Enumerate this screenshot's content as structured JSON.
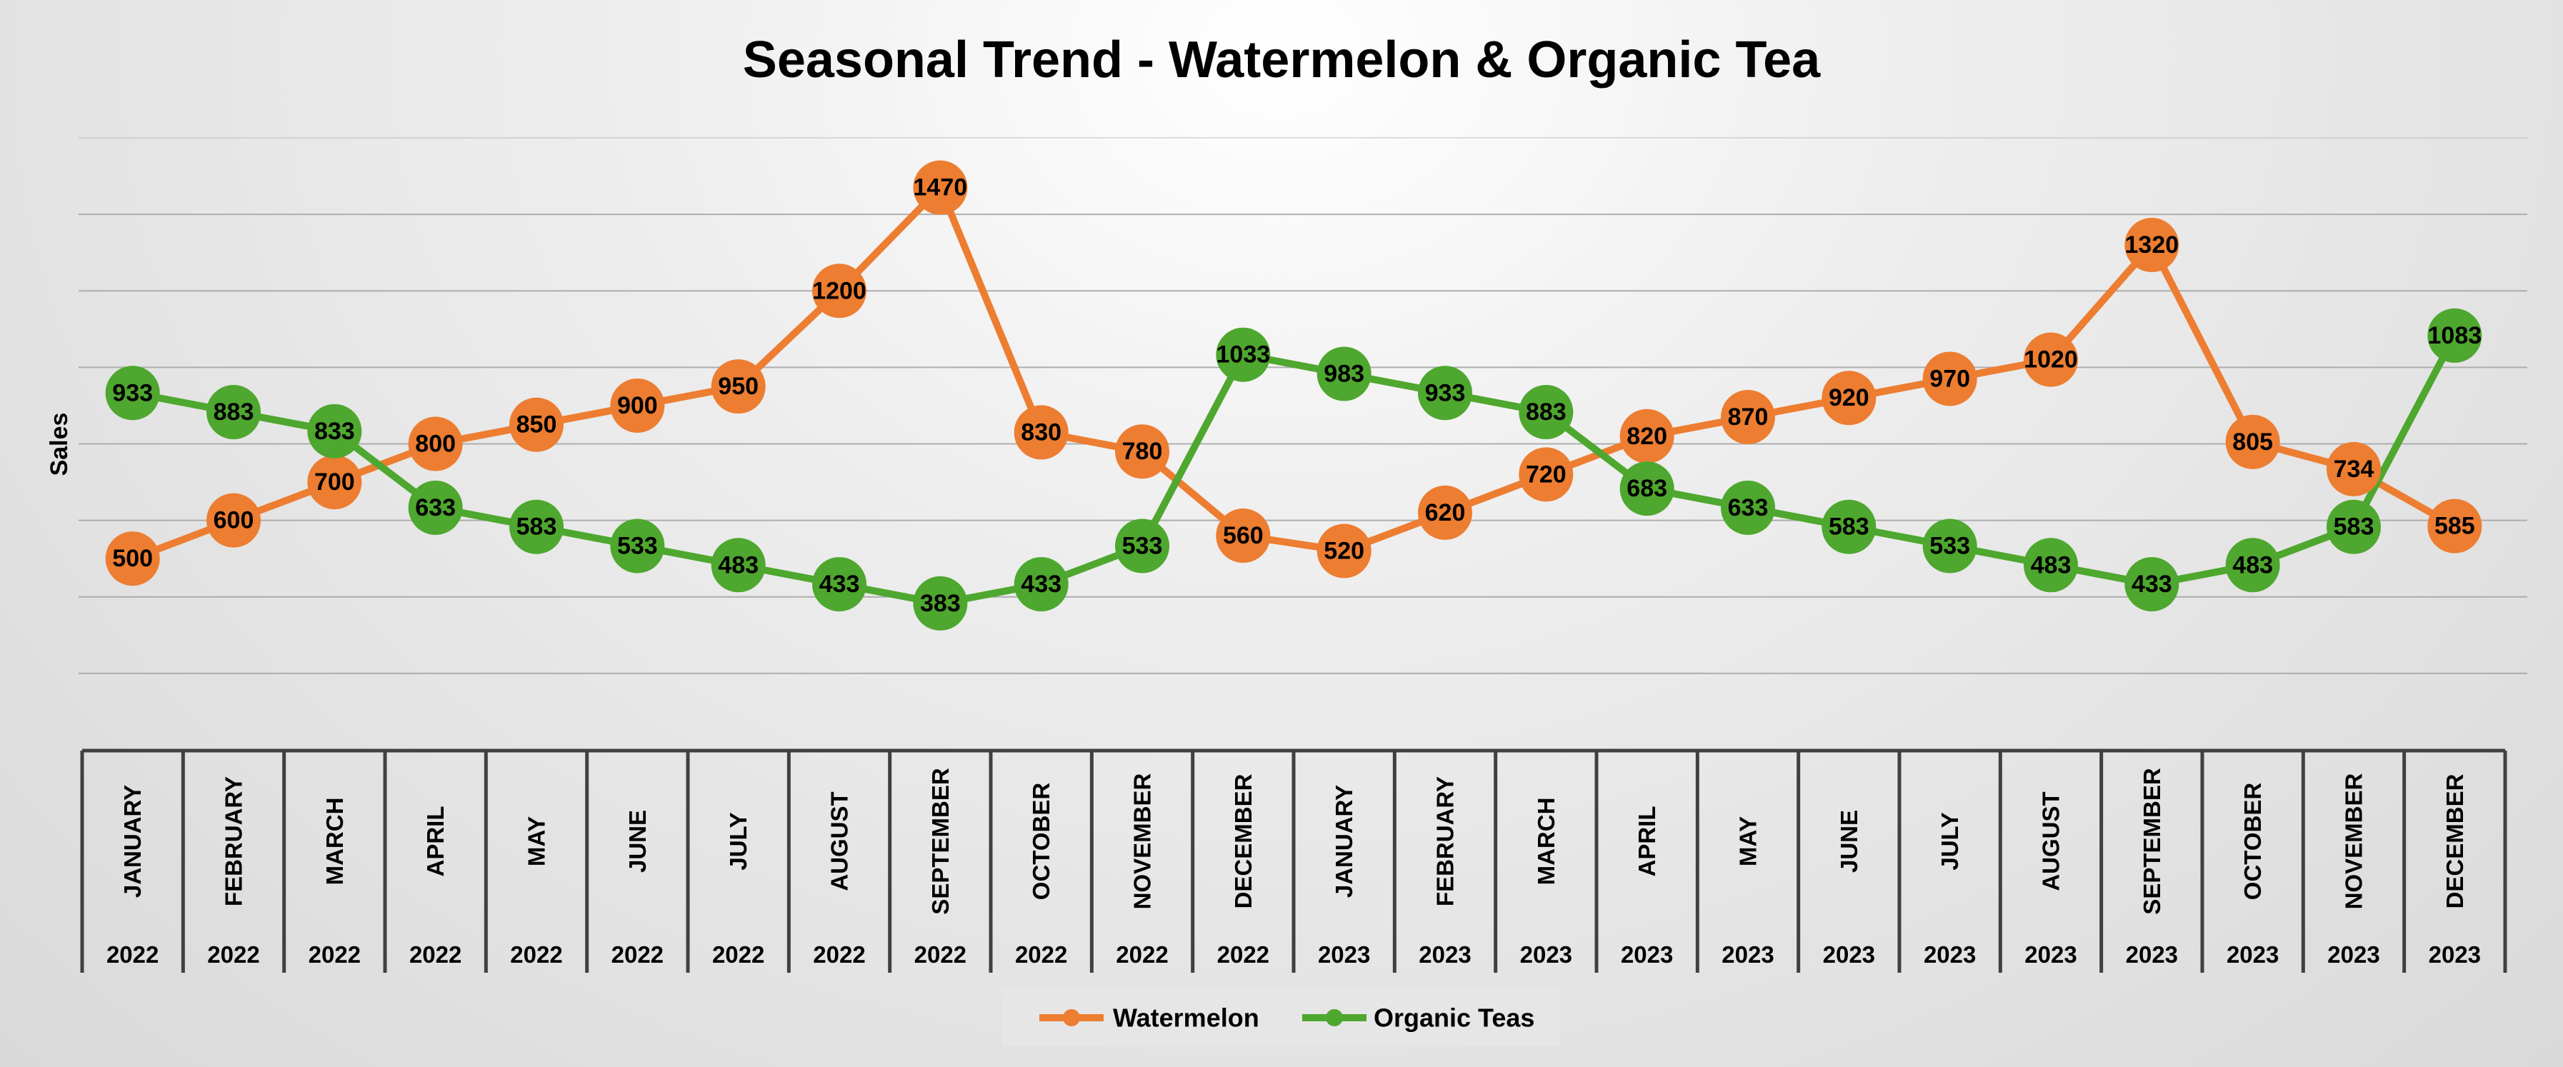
{
  "chart_data": {
    "type": "line",
    "title": "Seasonal Trend - Watermelon & Organic Tea",
    "ylabel": "Sales",
    "xlabel": "",
    "ylim": [
      0,
      1600
    ],
    "grid": true,
    "legend_position": "bottom",
    "categories": [
      {
        "month": "JANUARY",
        "year": "2022"
      },
      {
        "month": "FEBRUARY",
        "year": "2022"
      },
      {
        "month": "MARCH",
        "year": "2022"
      },
      {
        "month": "APRIL",
        "year": "2022"
      },
      {
        "month": "MAY",
        "year": "2022"
      },
      {
        "month": "JUNE",
        "year": "2022"
      },
      {
        "month": "JULY",
        "year": "2022"
      },
      {
        "month": "AUGUST",
        "year": "2022"
      },
      {
        "month": "SEPTEMBER",
        "year": "2022"
      },
      {
        "month": "OCTOBER",
        "year": "2022"
      },
      {
        "month": "NOVEMBER",
        "year": "2022"
      },
      {
        "month": "DECEMBER",
        "year": "2022"
      },
      {
        "month": "JANUARY",
        "year": "2023"
      },
      {
        "month": "FEBRUARY",
        "year": "2023"
      },
      {
        "month": "MARCH",
        "year": "2023"
      },
      {
        "month": "APRIL",
        "year": "2023"
      },
      {
        "month": "MAY",
        "year": "2023"
      },
      {
        "month": "JUNE",
        "year": "2023"
      },
      {
        "month": "JULY",
        "year": "2023"
      },
      {
        "month": "AUGUST",
        "year": "2023"
      },
      {
        "month": "SEPTEMBER",
        "year": "2023"
      },
      {
        "month": "OCTOBER",
        "year": "2023"
      },
      {
        "month": "NOVEMBER",
        "year": "2023"
      },
      {
        "month": "DECEMBER",
        "year": "2023"
      }
    ],
    "series": [
      {
        "name": "Watermelon",
        "color": "#ED7D31",
        "values": [
          500,
          600,
          700,
          800,
          850,
          900,
          950,
          1200,
          1470,
          830,
          780,
          560,
          520,
          620,
          720,
          820,
          870,
          920,
          970,
          1020,
          1320,
          805,
          734,
          585
        ]
      },
      {
        "name": "Organic Teas",
        "color": "#4EA72E",
        "values": [
          933,
          883,
          833,
          633,
          583,
          533,
          483,
          433,
          383,
          433,
          533,
          1033,
          983,
          933,
          883,
          683,
          633,
          583,
          533,
          483,
          433,
          483,
          583,
          1083
        ]
      }
    ],
    "colors": {
      "gridline": "#a6a6a6",
      "axis": "#404040",
      "text": "#000000",
      "legend_background": "#e6e6e6"
    }
  }
}
